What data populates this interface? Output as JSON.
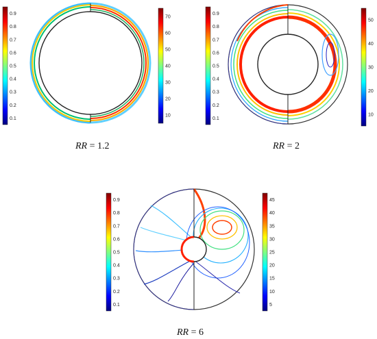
{
  "panels": [
    {
      "id": "p1",
      "caption": {
        "var": "RR",
        "eq": " = 1.2"
      },
      "left_bar": {
        "ticks": [
          "0.9",
          "0.8",
          "0.7",
          "0.6",
          "0.5",
          "0.4",
          "0.3",
          "0.2",
          "0.1"
        ]
      },
      "right_bar": {
        "ticks": [
          "70",
          "60",
          "50",
          "40",
          "30",
          "20",
          "10"
        ]
      }
    },
    {
      "id": "p2",
      "caption": {
        "var": "RR",
        "eq": " = 2"
      },
      "left_bar": {
        "ticks": [
          "0.9",
          "0.8",
          "0.7",
          "0.6",
          "0.5",
          "0.4",
          "0.3",
          "0.2",
          "0.1"
        ]
      },
      "right_bar": {
        "ticks": [
          "50",
          "40",
          "30",
          "20",
          "10"
        ]
      }
    },
    {
      "id": "p3",
      "caption": {
        "var": "RR",
        "eq": " = 6"
      },
      "left_bar": {
        "ticks": [
          "0.9",
          "0.8",
          "0.7",
          "0.6",
          "0.5",
          "0.4",
          "0.3",
          "0.2",
          "0.1"
        ]
      },
      "right_bar": {
        "ticks": [
          "45",
          "40",
          "35",
          "30",
          "25",
          "20",
          "15",
          "10",
          "5"
        ]
      }
    }
  ],
  "colormap": [
    "#00007f",
    "#0000ff",
    "#0080ff",
    "#00ffff",
    "#80ff80",
    "#ffff00",
    "#ff8000",
    "#ff0000",
    "#7f0000"
  ]
}
